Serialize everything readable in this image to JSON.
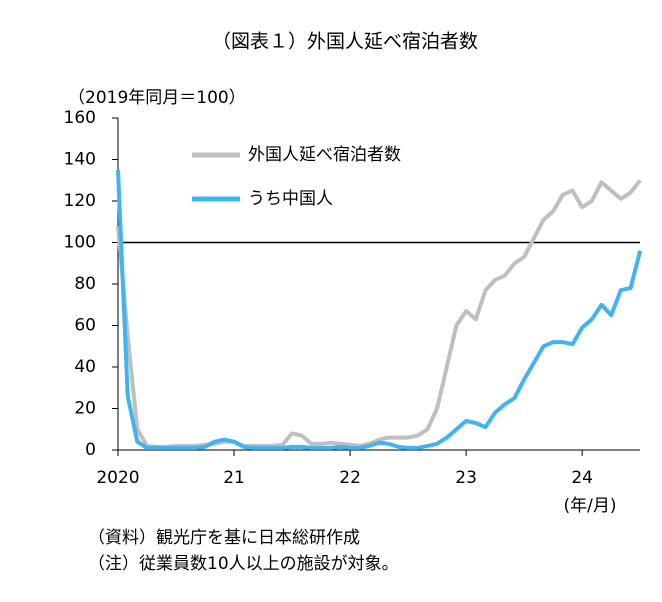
{
  "chart_data": {
    "type": "line",
    "title": "（図表１）外国人延べ宿泊者数",
    "y_axis_label": "（2019年同月＝100）",
    "x_axis_label": "(年/月)",
    "notes": [
      "（資料）観光庁を基に日本総研作成",
      "（注）従業員数10人以上の施設が対象。"
    ],
    "categories": [
      "2020",
      null,
      null,
      null,
      null,
      null,
      null,
      null,
      null,
      null,
      null,
      null,
      "21",
      null,
      null,
      null,
      null,
      null,
      null,
      null,
      null,
      null,
      null,
      null,
      "22",
      null,
      null,
      null,
      null,
      null,
      null,
      null,
      null,
      null,
      null,
      null,
      "23",
      null,
      null,
      null,
      null,
      null,
      null,
      null,
      null,
      null,
      null,
      null,
      "24",
      null,
      null,
      null,
      null,
      null,
      null
    ],
    "series": [
      {
        "name": "外国人延べ宿泊者数",
        "color": "#bfbfbf",
        "values": [
          108,
          55,
          10,
          2,
          1.5,
          1.5,
          2,
          2,
          2,
          2.5,
          3,
          4,
          4,
          2,
          2,
          2,
          2,
          2.5,
          8,
          7,
          3,
          3,
          3.5,
          3,
          2.5,
          2,
          3,
          5,
          6,
          6,
          6,
          7,
          10,
          20,
          40,
          60,
          67,
          63,
          77,
          82,
          84,
          90,
          93,
          102,
          111,
          115,
          123,
          125,
          117,
          120,
          129,
          125,
          121,
          124,
          130
        ]
      },
      {
        "name": "うち中国人",
        "color": "#3fb4f0",
        "values": [
          135,
          26,
          4,
          1,
          1,
          1,
          1,
          1,
          1,
          1.5,
          4,
          5,
          4,
          1.5,
          1,
          1,
          1,
          1,
          1.5,
          1.5,
          1,
          1,
          1,
          1.5,
          1,
          1,
          2,
          3.5,
          3,
          1.5,
          1,
          1,
          2,
          3,
          6,
          10,
          14,
          13,
          11,
          18,
          22,
          25,
          34,
          42,
          50,
          52,
          52,
          51,
          59,
          63,
          70,
          65,
          77,
          78,
          96
        ]
      }
    ],
    "reference_line": 100,
    "ylim": [
      0,
      160
    ],
    "yticks": [
      0,
      20,
      40,
      60,
      80,
      100,
      120,
      140,
      160
    ],
    "grid": false
  }
}
